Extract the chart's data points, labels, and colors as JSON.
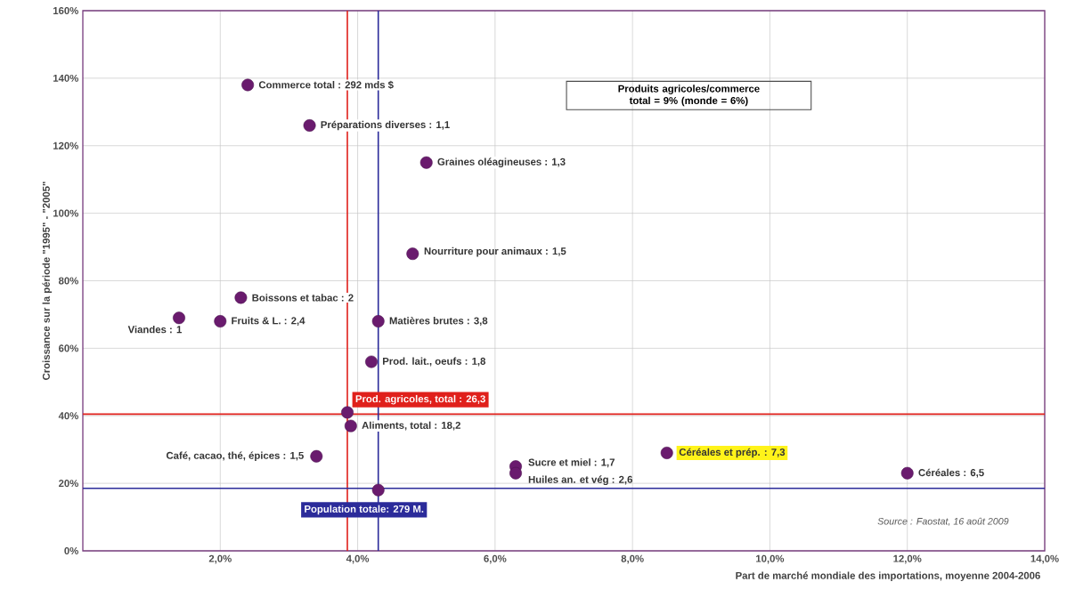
{
  "chart_data": {
    "type": "scatter",
    "xlabel": "Part de marché mondiale des importations, moyenne 2004-2006",
    "ylabel": "Croissance sur la période \"1995\" - \"2005\"",
    "x": [
      2.4,
      3.3,
      5.0,
      4.8,
      2.3,
      1.4,
      2.0,
      4.3,
      4.2,
      3.85,
      3.9,
      3.4,
      6.3,
      6.3,
      4.3,
      8.5,
      12.0
    ],
    "values": [
      138,
      126,
      115,
      88,
      75,
      69,
      68,
      68,
      56,
      41,
      37,
      28,
      25,
      23,
      18,
      29,
      23
    ],
    "color": "#6a1b6e",
    "marker": "circle",
    "grid": true,
    "xlim": [
      0,
      14
    ],
    "ylim": [
      0,
      160
    ],
    "xticks": [
      {
        "value": 2,
        "label": "2,0%"
      },
      {
        "value": 4,
        "label": "4,0%"
      },
      {
        "value": 6,
        "label": "6,0%"
      },
      {
        "value": 8,
        "label": "8,0%"
      },
      {
        "value": 10,
        "label": "10,0%"
      },
      {
        "value": 12,
        "label": "12,0%"
      },
      {
        "value": 14,
        "label": "14,0%"
      }
    ],
    "yticks": [
      {
        "value": 0,
        "label": "0%"
      },
      {
        "value": 20,
        "label": "20%"
      },
      {
        "value": 40,
        "label": "40%"
      },
      {
        "value": 60,
        "label": "60%"
      },
      {
        "value": 80,
        "label": "80%"
      },
      {
        "value": 100,
        "label": "100%"
      },
      {
        "value": 120,
        "label": "120%"
      },
      {
        "value": 140,
        "label": "140%"
      },
      {
        "value": 160,
        "label": "160%"
      }
    ],
    "ref_lines": [
      {
        "axis": "y",
        "value": 40.5,
        "color": "#e0201b"
      },
      {
        "axis": "x",
        "value": 3.85,
        "color": "#e0201b"
      },
      {
        "axis": "y",
        "value": 18.5,
        "color": "#2b2b9a"
      },
      {
        "axis": "x",
        "value": 4.3,
        "color": "#2b2b9a"
      }
    ],
    "annotations": [
      {
        "text": "Commerce total : 292 mds $",
        "x": 2.4,
        "y": 138
      },
      {
        "text": "Préparations diverses : 1,1",
        "x": 3.3,
        "y": 126
      },
      {
        "text": "Graines oléagineuses : 1,3",
        "x": 5.0,
        "y": 115
      },
      {
        "text": "Nourriture pour animaux : 1,5",
        "x": 4.8,
        "y": 88
      },
      {
        "text": "Boissons et tabac : 2",
        "x": 2.3,
        "y": 75
      },
      {
        "text": "Viandes : 1",
        "x": 1.4,
        "y": 69
      },
      {
        "text": "Fruits & L. : 2,4",
        "x": 2.0,
        "y": 68
      },
      {
        "text": "Matières brutes : 3,8",
        "x": 4.3,
        "y": 68
      },
      {
        "text": "Prod. lait., oeufs : 1,8",
        "x": 4.2,
        "y": 56
      },
      {
        "text": "Aliments, total : 18,2",
        "x": 3.9,
        "y": 37
      },
      {
        "text": "Café, cacao, thé, épices : 1,5",
        "x": 3.4,
        "y": 28
      },
      {
        "text": "Sucre et miel : 1,7",
        "x": 6.3,
        "y": 25
      },
      {
        "text": "Huiles an. et vég : 2,6",
        "x": 6.3,
        "y": 23
      },
      {
        "text": "Céréales et prép. : 7,3",
        "x": 8.5,
        "y": 29
      },
      {
        "text": "Céréales : 6,5",
        "x": 12.0,
        "y": 23
      },
      {
        "text": "Prod. agricoles, total : 26,3",
        "x": 3.85,
        "y": 41
      },
      {
        "text": "Population totale: 279 M.",
        "x": 4.3,
        "y": 18
      },
      "Produits agricoles/commerce total = 9% (monde = 6%)",
      "Source : Faostat, 16 août 2009"
    ]
  }
}
